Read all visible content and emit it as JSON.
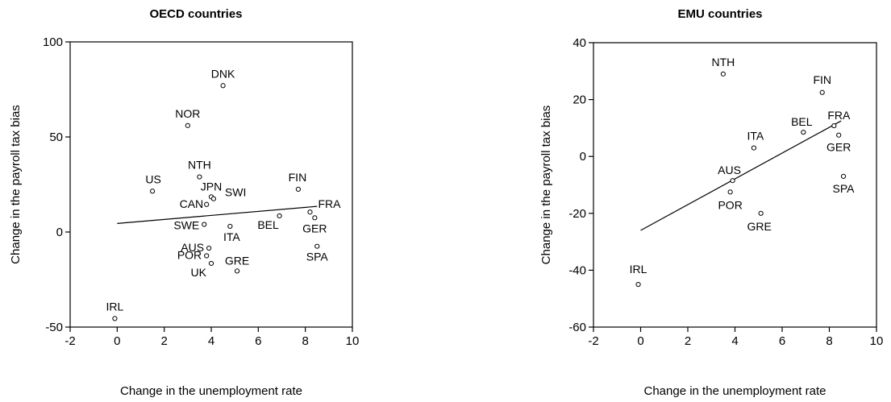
{
  "chart_data": [
    {
      "type": "scatter",
      "title": "OECD countries",
      "xlabel": "Change in the unemployment rate",
      "ylabel": "Change in the payroll tax bias",
      "xlim": [
        -2,
        10
      ],
      "ylim": [
        -50,
        100
      ],
      "xticks": [
        -2,
        0,
        2,
        4,
        6,
        8,
        10
      ],
      "yticks": [
        -50,
        0,
        50,
        100
      ],
      "grid": false,
      "points": [
        {
          "label": "DNK",
          "x": 4.5,
          "y": 77
        },
        {
          "label": "NOR",
          "x": 3.0,
          "y": 56
        },
        {
          "label": "NTH",
          "x": 3.5,
          "y": 29
        },
        {
          "label": "US",
          "x": 1.5,
          "y": 21.5
        },
        {
          "label": "FIN",
          "x": 7.7,
          "y": 22.5
        },
        {
          "label": "JPN",
          "x": 4.0,
          "y": 18.5
        },
        {
          "label": "SWI",
          "x": 4.1,
          "y": 17.5
        },
        {
          "label": "CAN",
          "x": 3.8,
          "y": 14.5
        },
        {
          "label": "FRA",
          "x": 8.2,
          "y": 10.5
        },
        {
          "label": "BEL",
          "x": 6.9,
          "y": 8.5
        },
        {
          "label": "GER",
          "x": 8.4,
          "y": 7.5
        },
        {
          "label": "SWE",
          "x": 3.7,
          "y": 4
        },
        {
          "label": "ITA",
          "x": 4.8,
          "y": 3
        },
        {
          "label": "SPA",
          "x": 8.5,
          "y": -7.5
        },
        {
          "label": "AUS",
          "x": 3.9,
          "y": -8.5
        },
        {
          "label": "POR",
          "x": 3.8,
          "y": -12.5
        },
        {
          "label": "UK",
          "x": 4.0,
          "y": -16.5
        },
        {
          "label": "GRE",
          "x": 5.1,
          "y": -20.5
        },
        {
          "label": "IRL",
          "x": -0.1,
          "y": -45.5
        }
      ],
      "fit_line": {
        "x": [
          0,
          8.5
        ],
        "y": [
          4.5,
          13.5
        ]
      }
    },
    {
      "type": "scatter",
      "title": "EMU countries",
      "xlabel": "Change in the unemployment rate",
      "ylabel": "Change in the payroll tax bias",
      "xlim": [
        -2,
        10
      ],
      "ylim": [
        -60,
        40
      ],
      "xticks": [
        -2,
        0,
        2,
        4,
        6,
        8,
        10
      ],
      "yticks": [
        -60,
        -40,
        -20,
        0,
        20,
        40
      ],
      "grid": false,
      "points": [
        {
          "label": "NTH",
          "x": 3.5,
          "y": 29
        },
        {
          "label": "FIN",
          "x": 7.7,
          "y": 22.5
        },
        {
          "label": "BEL",
          "x": 6.9,
          "y": 8.5
        },
        {
          "label": "FRA",
          "x": 8.2,
          "y": 10.8
        },
        {
          "label": "GER",
          "x": 8.4,
          "y": 7.5
        },
        {
          "label": "ITA",
          "x": 4.8,
          "y": 3
        },
        {
          "label": "AUS",
          "x": 3.9,
          "y": -8.5
        },
        {
          "label": "SPA",
          "x": 8.6,
          "y": -7
        },
        {
          "label": "POR",
          "x": 3.8,
          "y": -12.5
        },
        {
          "label": "GRE",
          "x": 5.1,
          "y": -20
        },
        {
          "label": "IRL",
          "x": -0.1,
          "y": -45
        }
      ],
      "fit_line": {
        "x": [
          0,
          8.5
        ],
        "y": [
          -26,
          12.5
        ]
      }
    }
  ]
}
